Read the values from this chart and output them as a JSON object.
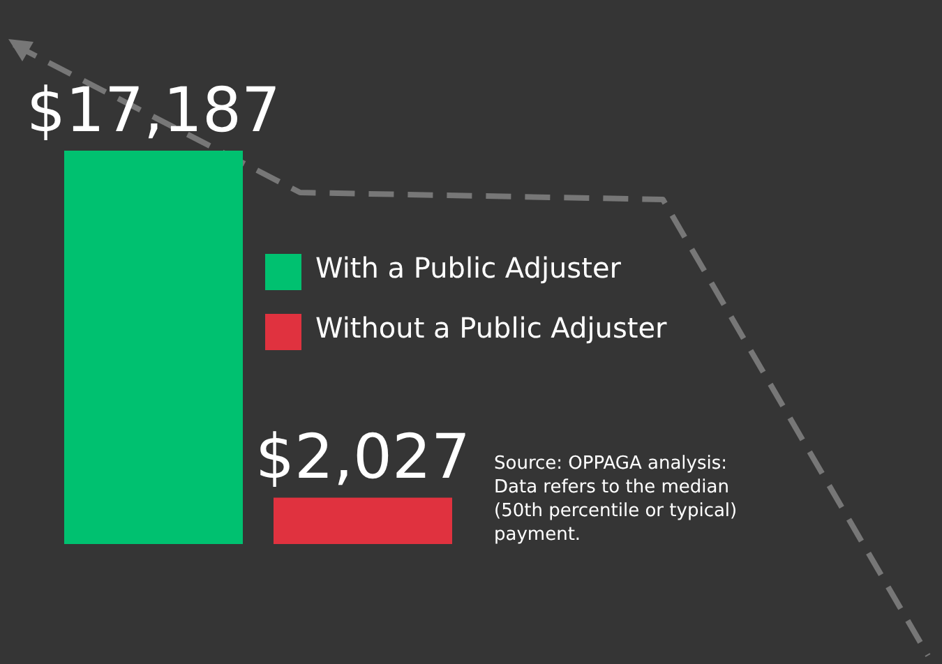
{
  "chart_data": {
    "type": "bar",
    "categories": [
      null
    ],
    "series": [
      {
        "name": "With a Public Adjuster",
        "color": "#00c170",
        "values": [
          17187
        ],
        "value_labels": [
          "$17,187"
        ]
      },
      {
        "name": "Without a Public Adjuster",
        "color": "#e0323f",
        "values": [
          2027
        ],
        "value_labels": [
          "$2,027"
        ]
      }
    ],
    "legend": "right",
    "annotations": [
      "Source: OPPAGA analysis: Data refers to the median (50th percentile or typical) payment."
    ]
  }
}
